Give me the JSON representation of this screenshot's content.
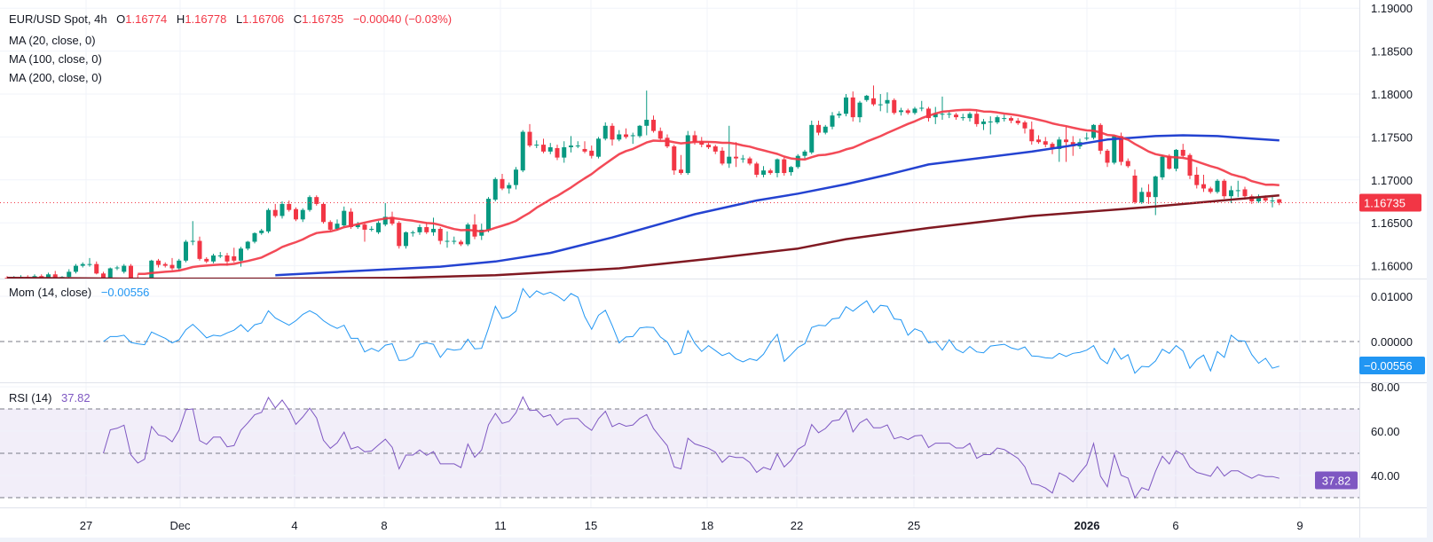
{
  "header": {
    "symbol": "EUR/USD Spot, 4h",
    "o_label": "O",
    "o_value": "1.16774",
    "h_label": "H",
    "h_value": "1.16778",
    "l_label": "L",
    "l_value": "1.16706",
    "c_label": "C",
    "c_value": "1.16735",
    "change": "−0.00040 (−0.03%)"
  },
  "indicators": {
    "ma20": "MA (20, close, 0)",
    "ma100": "MA (100, close, 0)",
    "ma200": "MA (200, close, 0)",
    "mom_label": "Mom (14, close)",
    "mom_value": "−0.00556",
    "rsi_label": "RSI (14)",
    "rsi_value": "37.82"
  },
  "colors": {
    "up": "#089981",
    "down": "#f23645",
    "ma20": "#f23645",
    "ma100": "#2443d1",
    "ma200": "#801922",
    "mom": "#2196f3",
    "rsi": "#7e57c2",
    "grid": "#f0f3fa",
    "dashed": "#787b86"
  },
  "chart_data": {
    "type": "candlestick",
    "timeframe": "4h",
    "price_axis": {
      "ticks": [
        "1.19000",
        "1.18500",
        "1.18000",
        "1.17500",
        "1.17000",
        "1.16500",
        "1.16000"
      ],
      "range": [
        1.157,
        1.191
      ]
    },
    "last_price_label": "1.16735",
    "time_ticks": [
      "27",
      "Dec",
      "4",
      "8",
      "11",
      "15",
      "18",
      "22",
      "25",
      "2026",
      "6",
      "9"
    ],
    "grid": true,
    "candles_ohlc": [
      [
        1.1586,
        1.1588,
        1.1582,
        1.1584
      ],
      [
        1.1584,
        1.1588,
        1.1582,
        1.1586
      ],
      [
        1.1586,
        1.1589,
        1.1584,
        1.1587
      ],
      [
        1.1587,
        1.1589,
        1.1584,
        1.1586
      ],
      [
        1.1586,
        1.159,
        1.1584,
        1.1588
      ],
      [
        1.1588,
        1.159,
        1.1584,
        1.1586
      ],
      [
        1.1581,
        1.1592,
        1.1579,
        1.159
      ],
      [
        1.159,
        1.1594,
        1.1583,
        1.1585
      ],
      [
        1.1585,
        1.1588,
        1.1583,
        1.1587
      ],
      [
        1.1587,
        1.1596,
        1.1585,
        1.1593
      ],
      [
        1.1593,
        1.1602,
        1.1591,
        1.16
      ],
      [
        1.16,
        1.1604,
        1.1598,
        1.1602
      ],
      [
        1.1602,
        1.1609,
        1.1599,
        1.1602
      ],
      [
        1.1602,
        1.1605,
        1.159,
        1.1591
      ],
      [
        1.1591,
        1.1593,
        1.1582,
        1.1584
      ],
      [
        1.1584,
        1.1598,
        1.1582,
        1.1597
      ],
      [
        1.1597,
        1.16,
        1.1595,
        1.1598
      ],
      [
        1.1593,
        1.1602,
        1.1591,
        1.16
      ],
      [
        1.16,
        1.1602,
        1.1584,
        1.1586
      ],
      [
        1.1586,
        1.159,
        1.1579,
        1.1581
      ],
      [
        1.1581,
        1.1585,
        1.1579,
        1.1583
      ],
      [
        1.1583,
        1.1607,
        1.1581,
        1.1606
      ],
      [
        1.1606,
        1.1608,
        1.1598,
        1.1601
      ],
      [
        1.1602,
        1.1604,
        1.1598,
        1.16
      ],
      [
        1.1601,
        1.1609,
        1.1595,
        1.1597
      ],
      [
        1.1597,
        1.1608,
        1.1594,
        1.1606
      ],
      [
        1.1606,
        1.163,
        1.1604,
        1.1628
      ],
      [
        1.1629,
        1.1652,
        1.1624,
        1.1629
      ],
      [
        1.1629,
        1.1634,
        1.1606,
        1.1608
      ],
      [
        1.1608,
        1.161,
        1.1603,
        1.1605
      ],
      [
        1.1605,
        1.1614,
        1.1603,
        1.1612
      ],
      [
        1.1612,
        1.1616,
        1.1609,
        1.1612
      ],
      [
        1.1612,
        1.1615,
        1.16,
        1.1605
      ],
      [
        1.1611,
        1.1621,
        1.1604,
        1.1606
      ],
      [
        1.1606,
        1.1622,
        1.1599,
        1.162
      ],
      [
        1.162,
        1.1629,
        1.1618,
        1.1628
      ],
      [
        1.1628,
        1.1639,
        1.1626,
        1.1638
      ],
      [
        1.1638,
        1.1643,
        1.1636,
        1.1641
      ],
      [
        1.164,
        1.1667,
        1.1638,
        1.1665
      ],
      [
        1.1665,
        1.1672,
        1.1656,
        1.1658
      ],
      [
        1.1658,
        1.1675,
        1.1655,
        1.1672
      ],
      [
        1.1672,
        1.1676,
        1.1663,
        1.1665
      ],
      [
        1.1666,
        1.1668,
        1.1652,
        1.1654
      ],
      [
        1.1654,
        1.1667,
        1.1651,
        1.1665
      ],
      [
        1.1665,
        1.1682,
        1.1663,
        1.168
      ],
      [
        1.168,
        1.1682,
        1.167,
        1.1672
      ],
      [
        1.1672,
        1.1674,
        1.1649,
        1.1651
      ],
      [
        1.1651,
        1.1653,
        1.164,
        1.1642
      ],
      [
        1.1643,
        1.1654,
        1.1641,
        1.1649
      ],
      [
        1.1647,
        1.1669,
        1.1645,
        1.1664
      ],
      [
        1.1663,
        1.1667,
        1.1643,
        1.1645
      ],
      [
        1.1645,
        1.1651,
        1.1643,
        1.1648
      ],
      [
        1.1648,
        1.165,
        1.1628,
        1.1642
      ],
      [
        1.1643,
        1.1646,
        1.164,
        1.1643
      ],
      [
        1.1639,
        1.1652,
        1.1637,
        1.165
      ],
      [
        1.1648,
        1.1673,
        1.1646,
        1.1657
      ],
      [
        1.1657,
        1.1663,
        1.1647,
        1.1649
      ],
      [
        1.165,
        1.1652,
        1.162,
        1.1623
      ],
      [
        1.1623,
        1.164,
        1.162,
        1.1639
      ],
      [
        1.1639,
        1.1641,
        1.1634,
        1.1639
      ],
      [
        1.1639,
        1.1648,
        1.1636,
        1.1645
      ],
      [
        1.1645,
        1.165,
        1.1637,
        1.1639
      ],
      [
        1.1639,
        1.1656,
        1.1635,
        1.1643
      ],
      [
        1.1643,
        1.1645,
        1.1625,
        1.1629
      ],
      [
        1.1629,
        1.164,
        1.1621,
        1.1629
      ],
      [
        1.1629,
        1.1634,
        1.1625,
        1.1629
      ],
      [
        1.1628,
        1.163,
        1.1623,
        1.1625
      ],
      [
        1.1625,
        1.165,
        1.1623,
        1.1648
      ],
      [
        1.1648,
        1.166,
        1.1631,
        1.1634
      ],
      [
        1.1635,
        1.1649,
        1.163,
        1.1642
      ],
      [
        1.1642,
        1.168,
        1.1639,
        1.1678
      ],
      [
        1.1677,
        1.1703,
        1.1675,
        1.1701
      ],
      [
        1.1701,
        1.1707,
        1.1688,
        1.169
      ],
      [
        1.169,
        1.1697,
        1.1684,
        1.1694
      ],
      [
        1.1694,
        1.1715,
        1.1689,
        1.1712
      ],
      [
        1.1711,
        1.1758,
        1.1709,
        1.1756
      ],
      [
        1.1756,
        1.1765,
        1.1738,
        1.174
      ],
      [
        1.1741,
        1.1746,
        1.1737,
        1.1741
      ],
      [
        1.1741,
        1.1748,
        1.1731,
        1.1733
      ],
      [
        1.1733,
        1.1743,
        1.173,
        1.1738
      ],
      [
        1.1737,
        1.1741,
        1.1723,
        1.1726
      ],
      [
        1.1726,
        1.1745,
        1.172,
        1.1738
      ],
      [
        1.1738,
        1.1751,
        1.1732,
        1.174
      ],
      [
        1.174,
        1.1745,
        1.1737,
        1.174
      ],
      [
        1.1736,
        1.1745,
        1.1731,
        1.1733
      ],
      [
        1.1734,
        1.174,
        1.1725,
        1.1728
      ],
      [
        1.1727,
        1.175,
        1.1725,
        1.1748
      ],
      [
        1.1748,
        1.1767,
        1.1746,
        1.1763
      ],
      [
        1.1763,
        1.1766,
        1.174,
        1.1747
      ],
      [
        1.1747,
        1.1758,
        1.1745,
        1.1753
      ],
      [
        1.1753,
        1.176,
        1.1748,
        1.175
      ],
      [
        1.1752,
        1.1755,
        1.1742,
        1.1752
      ],
      [
        1.1751,
        1.1764,
        1.1749,
        1.1763
      ],
      [
        1.1763,
        1.1804,
        1.1752,
        1.177
      ],
      [
        1.177,
        1.1775,
        1.1755,
        1.1757
      ],
      [
        1.1757,
        1.1761,
        1.1746,
        1.1748
      ],
      [
        1.1749,
        1.1753,
        1.1737,
        1.1739
      ],
      [
        1.1739,
        1.1741,
        1.1706,
        1.1711
      ],
      [
        1.1712,
        1.1729,
        1.1706,
        1.1708
      ],
      [
        1.1708,
        1.1757,
        1.1706,
        1.1752
      ],
      [
        1.1752,
        1.1757,
        1.1741,
        1.1744
      ],
      [
        1.1745,
        1.175,
        1.1738,
        1.1741
      ],
      [
        1.1741,
        1.1743,
        1.1736,
        1.1738
      ],
      [
        1.1739,
        1.1741,
        1.173,
        1.1733
      ],
      [
        1.1734,
        1.1738,
        1.1717,
        1.1719
      ],
      [
        1.1719,
        1.1763,
        1.1714,
        1.1727
      ],
      [
        1.1727,
        1.1744,
        1.1715,
        1.1725
      ],
      [
        1.1725,
        1.1729,
        1.172,
        1.1725
      ],
      [
        1.1725,
        1.1727,
        1.1717,
        1.1719
      ],
      [
        1.1719,
        1.1721,
        1.1703,
        1.1706
      ],
      [
        1.1706,
        1.1716,
        1.1703,
        1.1711
      ],
      [
        1.1711,
        1.1713,
        1.1706,
        1.1708
      ],
      [
        1.1708,
        1.1725,
        1.1703,
        1.1724
      ],
      [
        1.1724,
        1.1726,
        1.1705,
        1.1708
      ],
      [
        1.1709,
        1.1716,
        1.1705,
        1.1715
      ],
      [
        1.1715,
        1.173,
        1.1713,
        1.1728
      ],
      [
        1.1728,
        1.1735,
        1.1725,
        1.1733
      ],
      [
        1.1732,
        1.1769,
        1.173,
        1.1764
      ],
      [
        1.1764,
        1.1769,
        1.1752,
        1.1755
      ],
      [
        1.1755,
        1.1764,
        1.1753,
        1.1762
      ],
      [
        1.1762,
        1.1779,
        1.1759,
        1.1775
      ],
      [
        1.1775,
        1.178,
        1.1772,
        1.1777
      ],
      [
        1.1777,
        1.18,
        1.1774,
        1.1796
      ],
      [
        1.1796,
        1.1803,
        1.1768,
        1.1773
      ],
      [
        1.1773,
        1.1792,
        1.1767,
        1.179
      ],
      [
        1.1793,
        1.1799,
        1.1791,
        1.1798
      ],
      [
        1.1795,
        1.181,
        1.1786,
        1.1788
      ],
      [
        1.1788,
        1.18,
        1.178,
        1.1788
      ],
      [
        1.1789,
        1.1802,
        1.1778,
        1.1793
      ],
      [
        1.1793,
        1.1795,
        1.1776,
        1.1778
      ],
      [
        1.1779,
        1.1784,
        1.1775,
        1.1781
      ],
      [
        1.1781,
        1.1783,
        1.1776,
        1.1778
      ],
      [
        1.1778,
        1.1785,
        1.1776,
        1.1783
      ],
      [
        1.1784,
        1.1792,
        1.178,
        1.1784
      ],
      [
        1.1783,
        1.1785,
        1.1768,
        1.1772
      ],
      [
        1.1773,
        1.1785,
        1.1765,
        1.1777
      ],
      [
        1.1777,
        1.1797,
        1.177,
        1.1777
      ],
      [
        1.1777,
        1.178,
        1.1772,
        1.1777
      ],
      [
        1.1776,
        1.1778,
        1.177,
        1.1773
      ],
      [
        1.1773,
        1.1777,
        1.1769,
        1.1773
      ],
      [
        1.1772,
        1.1779,
        1.1768,
        1.1777
      ],
      [
        1.1777,
        1.178,
        1.1762,
        1.1765
      ],
      [
        1.1765,
        1.1771,
        1.1758,
        1.1768
      ],
      [
        1.1768,
        1.1774,
        1.1753,
        1.1768
      ],
      [
        1.1767,
        1.1775,
        1.1765,
        1.1773
      ],
      [
        1.1772,
        1.1776,
        1.1768,
        1.1772
      ],
      [
        1.1772,
        1.1774,
        1.1766,
        1.1769
      ],
      [
        1.1769,
        1.1772,
        1.1764,
        1.1766
      ],
      [
        1.1767,
        1.1769,
        1.1754,
        1.176
      ],
      [
        1.1759,
        1.1768,
        1.1741,
        1.1745
      ],
      [
        1.1747,
        1.1752,
        1.1742,
        1.1744
      ],
      [
        1.1745,
        1.175,
        1.1738,
        1.1741
      ],
      [
        1.1742,
        1.1744,
        1.173,
        1.1736
      ],
      [
        1.1736,
        1.175,
        1.1721,
        1.1747
      ],
      [
        1.1747,
        1.1762,
        1.1721,
        1.1744
      ],
      [
        1.1744,
        1.1751,
        1.1728,
        1.1739
      ],
      [
        1.1739,
        1.1748,
        1.1736,
        1.1744
      ],
      [
        1.1749,
        1.1755,
        1.1746,
        1.1749
      ],
      [
        1.1749,
        1.1765,
        1.1747,
        1.1764
      ],
      [
        1.1764,
        1.1766,
        1.173,
        1.1734
      ],
      [
        1.1734,
        1.1736,
        1.1715,
        1.172
      ],
      [
        1.172,
        1.1752,
        1.1718,
        1.1751
      ],
      [
        1.1751,
        1.1755,
        1.1717,
        1.1721
      ],
      [
        1.1722,
        1.1725,
        1.1714,
        1.1716
      ],
      [
        1.1705,
        1.1712,
        1.1672,
        1.1674
      ],
      [
        1.1674,
        1.1691,
        1.1672,
        1.1686
      ],
      [
        1.1686,
        1.1695,
        1.1672,
        1.168
      ],
      [
        1.168,
        1.1705,
        1.1659,
        1.1704
      ],
      [
        1.1703,
        1.1729,
        1.17,
        1.1727
      ],
      [
        1.1728,
        1.173,
        1.1712,
        1.1713
      ],
      [
        1.1713,
        1.1736,
        1.171,
        1.1735
      ],
      [
        1.1735,
        1.1742,
        1.1726,
        1.1728
      ],
      [
        1.1729,
        1.1731,
        1.1701,
        1.1705
      ],
      [
        1.1706,
        1.1715,
        1.169,
        1.1694
      ],
      [
        1.1695,
        1.1706,
        1.1686,
        1.169
      ],
      [
        1.169,
        1.1692,
        1.1684,
        1.1686
      ],
      [
        1.1686,
        1.1701,
        1.1684,
        1.1699
      ],
      [
        1.1699,
        1.1701,
        1.1678,
        1.1681
      ],
      [
        1.1681,
        1.1693,
        1.1673,
        1.1688
      ],
      [
        1.1688,
        1.1699,
        1.168,
        1.1688
      ],
      [
        1.1689,
        1.1692,
        1.1677,
        1.1681
      ],
      [
        1.1681,
        1.1683,
        1.1672,
        1.1675
      ],
      [
        1.1675,
        1.1683,
        1.1673,
        1.1679
      ],
      [
        1.1679,
        1.1682,
        1.1674,
        1.1676
      ],
      [
        1.1676,
        1.1681,
        1.1668,
        1.1676
      ],
      [
        1.16774,
        1.16778,
        1.16706,
        1.16735
      ]
    ],
    "ma100_by_bar": [
      [
        39,
        1.1589
      ],
      [
        51,
        1.1594
      ],
      [
        63,
        1.1599
      ],
      [
        71,
        1.1605
      ],
      [
        79,
        1.1615
      ],
      [
        88,
        1.1633
      ],
      [
        100,
        1.166
      ],
      [
        109,
        1.1676
      ],
      [
        115,
        1.1684
      ],
      [
        122,
        1.1695
      ],
      [
        128,
        1.1706
      ],
      [
        134,
        1.1718
      ],
      [
        141,
        1.1725
      ],
      [
        149,
        1.1733
      ],
      [
        154,
        1.1739
      ],
      [
        160,
        1.1747
      ],
      [
        167,
        1.1751
      ],
      [
        171,
        1.1752
      ],
      [
        176,
        1.1751
      ],
      [
        181,
        1.1748
      ],
      [
        185,
        1.1746
      ]
    ],
    "ma200_by_bar": [
      [
        0,
        1.1586
      ],
      [
        18,
        1.1585
      ],
      [
        38,
        1.1585
      ],
      [
        57,
        1.1586
      ],
      [
        71,
        1.1589
      ],
      [
        89,
        1.1597
      ],
      [
        102,
        1.1608
      ],
      [
        115,
        1.162
      ],
      [
        122,
        1.1631
      ],
      [
        134,
        1.1644
      ],
      [
        149,
        1.1658
      ],
      [
        167,
        1.1669
      ],
      [
        185,
        1.1682
      ]
    ],
    "momentum": {
      "period": 14,
      "ticks": [
        "0.01000",
        "0.00000"
      ],
      "zero_line": 0,
      "last_label": "−0.00556"
    },
    "rsi": {
      "period": 14,
      "ticks": [
        "80.00",
        "60.00",
        "40.00"
      ],
      "levels": [
        70,
        50,
        30
      ],
      "band": [
        30,
        70
      ],
      "last_label": "37.82"
    }
  }
}
